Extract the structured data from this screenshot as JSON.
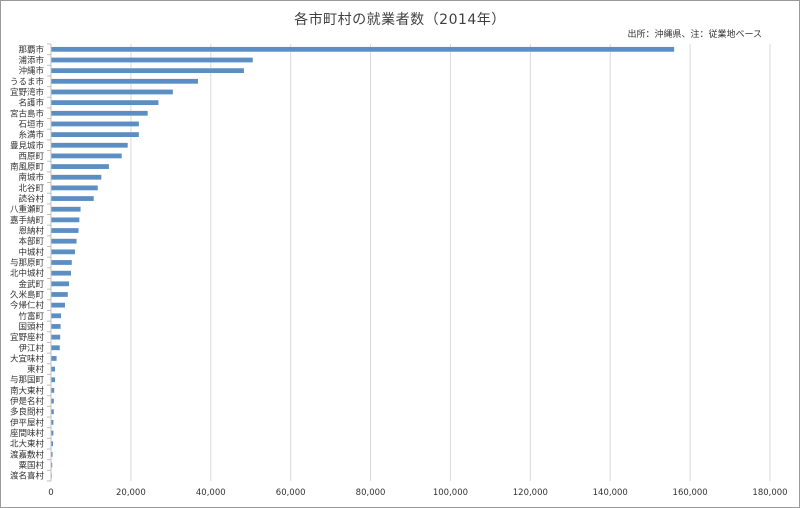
{
  "chart_data": {
    "type": "bar",
    "orientation": "horizontal",
    "title": "各市町村の就業者数（2014年）",
    "source_note": "出所：沖縄県、注：従業地ベース",
    "categories": [
      "那覇市",
      "浦添市",
      "沖縄市",
      "うるま市",
      "宜野湾市",
      "名護市",
      "宮古島市",
      "石垣市",
      "糸満市",
      "豊見城市",
      "西原町",
      "南風原町",
      "南城市",
      "北谷町",
      "読谷村",
      "八重瀬町",
      "嘉手納町",
      "恩納村",
      "本部町",
      "中城村",
      "与那原町",
      "北中城村",
      "金武町",
      "久米島町",
      "今帰仁村",
      "竹富町",
      "国頭村",
      "宜野座村",
      "伊江村",
      "大宜味村",
      "東村",
      "与那国町",
      "南大東村",
      "伊是名村",
      "多良間村",
      "伊平屋村",
      "座間味村",
      "北大東村",
      "渡嘉敷村",
      "粟国村",
      "渡名喜村"
    ],
    "values": [
      156000,
      50500,
      48300,
      36800,
      30500,
      26900,
      24200,
      22000,
      22000,
      19200,
      17700,
      14500,
      12600,
      11700,
      10700,
      7400,
      7100,
      6900,
      6400,
      6000,
      5200,
      5000,
      4500,
      4200,
      3500,
      2500,
      2400,
      2300,
      2200,
      1400,
      1000,
      1000,
      800,
      700,
      700,
      600,
      600,
      500,
      400,
      300,
      200
    ],
    "xlim": [
      0,
      180000
    ],
    "xticks": [
      "0",
      "20,000",
      "40,000",
      "60,000",
      "80,000",
      "100,000",
      "120,000",
      "140,000",
      "160,000",
      "180,000"
    ],
    "grid": true,
    "bar_color": "#5b8fc4",
    "grid_color": "#d9d9d9"
  }
}
